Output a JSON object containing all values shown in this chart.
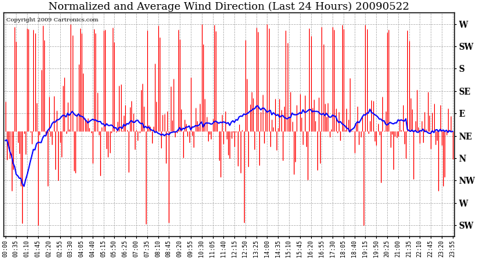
{
  "title": "Normalized and Average Wind Direction (Last 24 Hours) 20090522",
  "copyright": "Copyright 2009 Cartronics.com",
  "ytick_labels": [
    "W",
    "SW",
    "S",
    "SE",
    "E",
    "NE",
    "N",
    "NW",
    "W",
    "SW"
  ],
  "ytick_values": [
    8,
    7,
    6,
    5,
    4,
    3,
    2,
    1,
    0,
    -1
  ],
  "ylim": [
    -1.5,
    8.5
  ],
  "background_color": "#ffffff",
  "plot_bg_color": "#ffffff",
  "grid_color": "#aaaaaa",
  "bar_color": "#ff0000",
  "line_color": "#0000ff",
  "title_fontsize": 11,
  "xtick_labels": [
    "00:00",
    "00:35",
    "01:10",
    "01:45",
    "02:20",
    "02:55",
    "03:30",
    "04:05",
    "04:40",
    "05:15",
    "05:50",
    "06:25",
    "07:00",
    "07:35",
    "08:10",
    "08:45",
    "09:20",
    "09:55",
    "10:30",
    "11:05",
    "11:40",
    "12:15",
    "12:50",
    "13:25",
    "14:00",
    "14:35",
    "15:10",
    "15:45",
    "16:20",
    "16:55",
    "17:30",
    "18:05",
    "18:40",
    "19:15",
    "19:50",
    "20:25",
    "21:00",
    "21:35",
    "22:10",
    "22:45",
    "23:20",
    "23:55"
  ]
}
